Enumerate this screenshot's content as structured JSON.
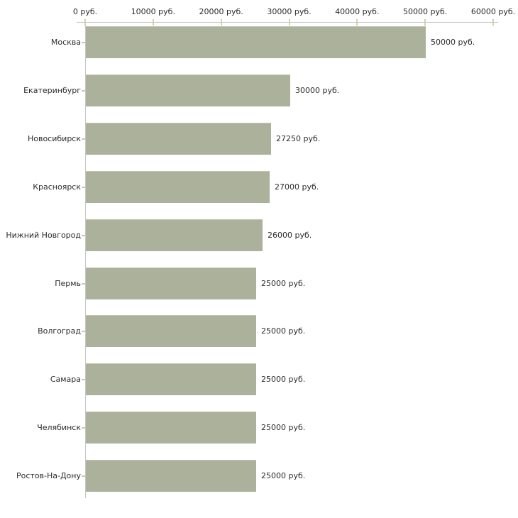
{
  "chart_data": {
    "type": "bar",
    "orientation": "horizontal",
    "title": "",
    "categories": [
      "Москва",
      "Екатеринбург",
      "Новосибирск",
      "Красноярск",
      "Нижний Новгород",
      "Пермь",
      "Волгоград",
      "Самара",
      "Челябинск",
      "Ростов-На-Дону"
    ],
    "values": [
      50000,
      30000,
      27250,
      27000,
      26000,
      25000,
      25000,
      25000,
      25000,
      25000
    ],
    "value_labels": [
      "50000 руб.",
      "30000 руб.",
      "27250 руб.",
      "27000 руб.",
      "26000 руб.",
      "25000 руб.",
      "25000 руб.",
      "25000 руб.",
      "25000 руб.",
      "25000 руб."
    ],
    "x_axis": {
      "position": "top",
      "min": 0,
      "max": 60000,
      "tick_values": [
        0,
        10000,
        20000,
        30000,
        40000,
        50000,
        60000
      ],
      "tick_labels": [
        "0 руб.",
        "10000 руб.",
        "20000 руб.",
        "30000 руб.",
        "40000 руб.",
        "50000 руб.",
        "60000 руб."
      ]
    },
    "grid": false,
    "legend": false
  },
  "colors": {
    "bar_fill": "#abb19b",
    "bar_top_edge": "#bdc3ad",
    "axis_line": "#c6c6c6",
    "x_tick_mark": "#cfd2ae",
    "y_tick_mark": "#c6caac",
    "text": "#2b2b2b",
    "background": "#ffffff"
  }
}
